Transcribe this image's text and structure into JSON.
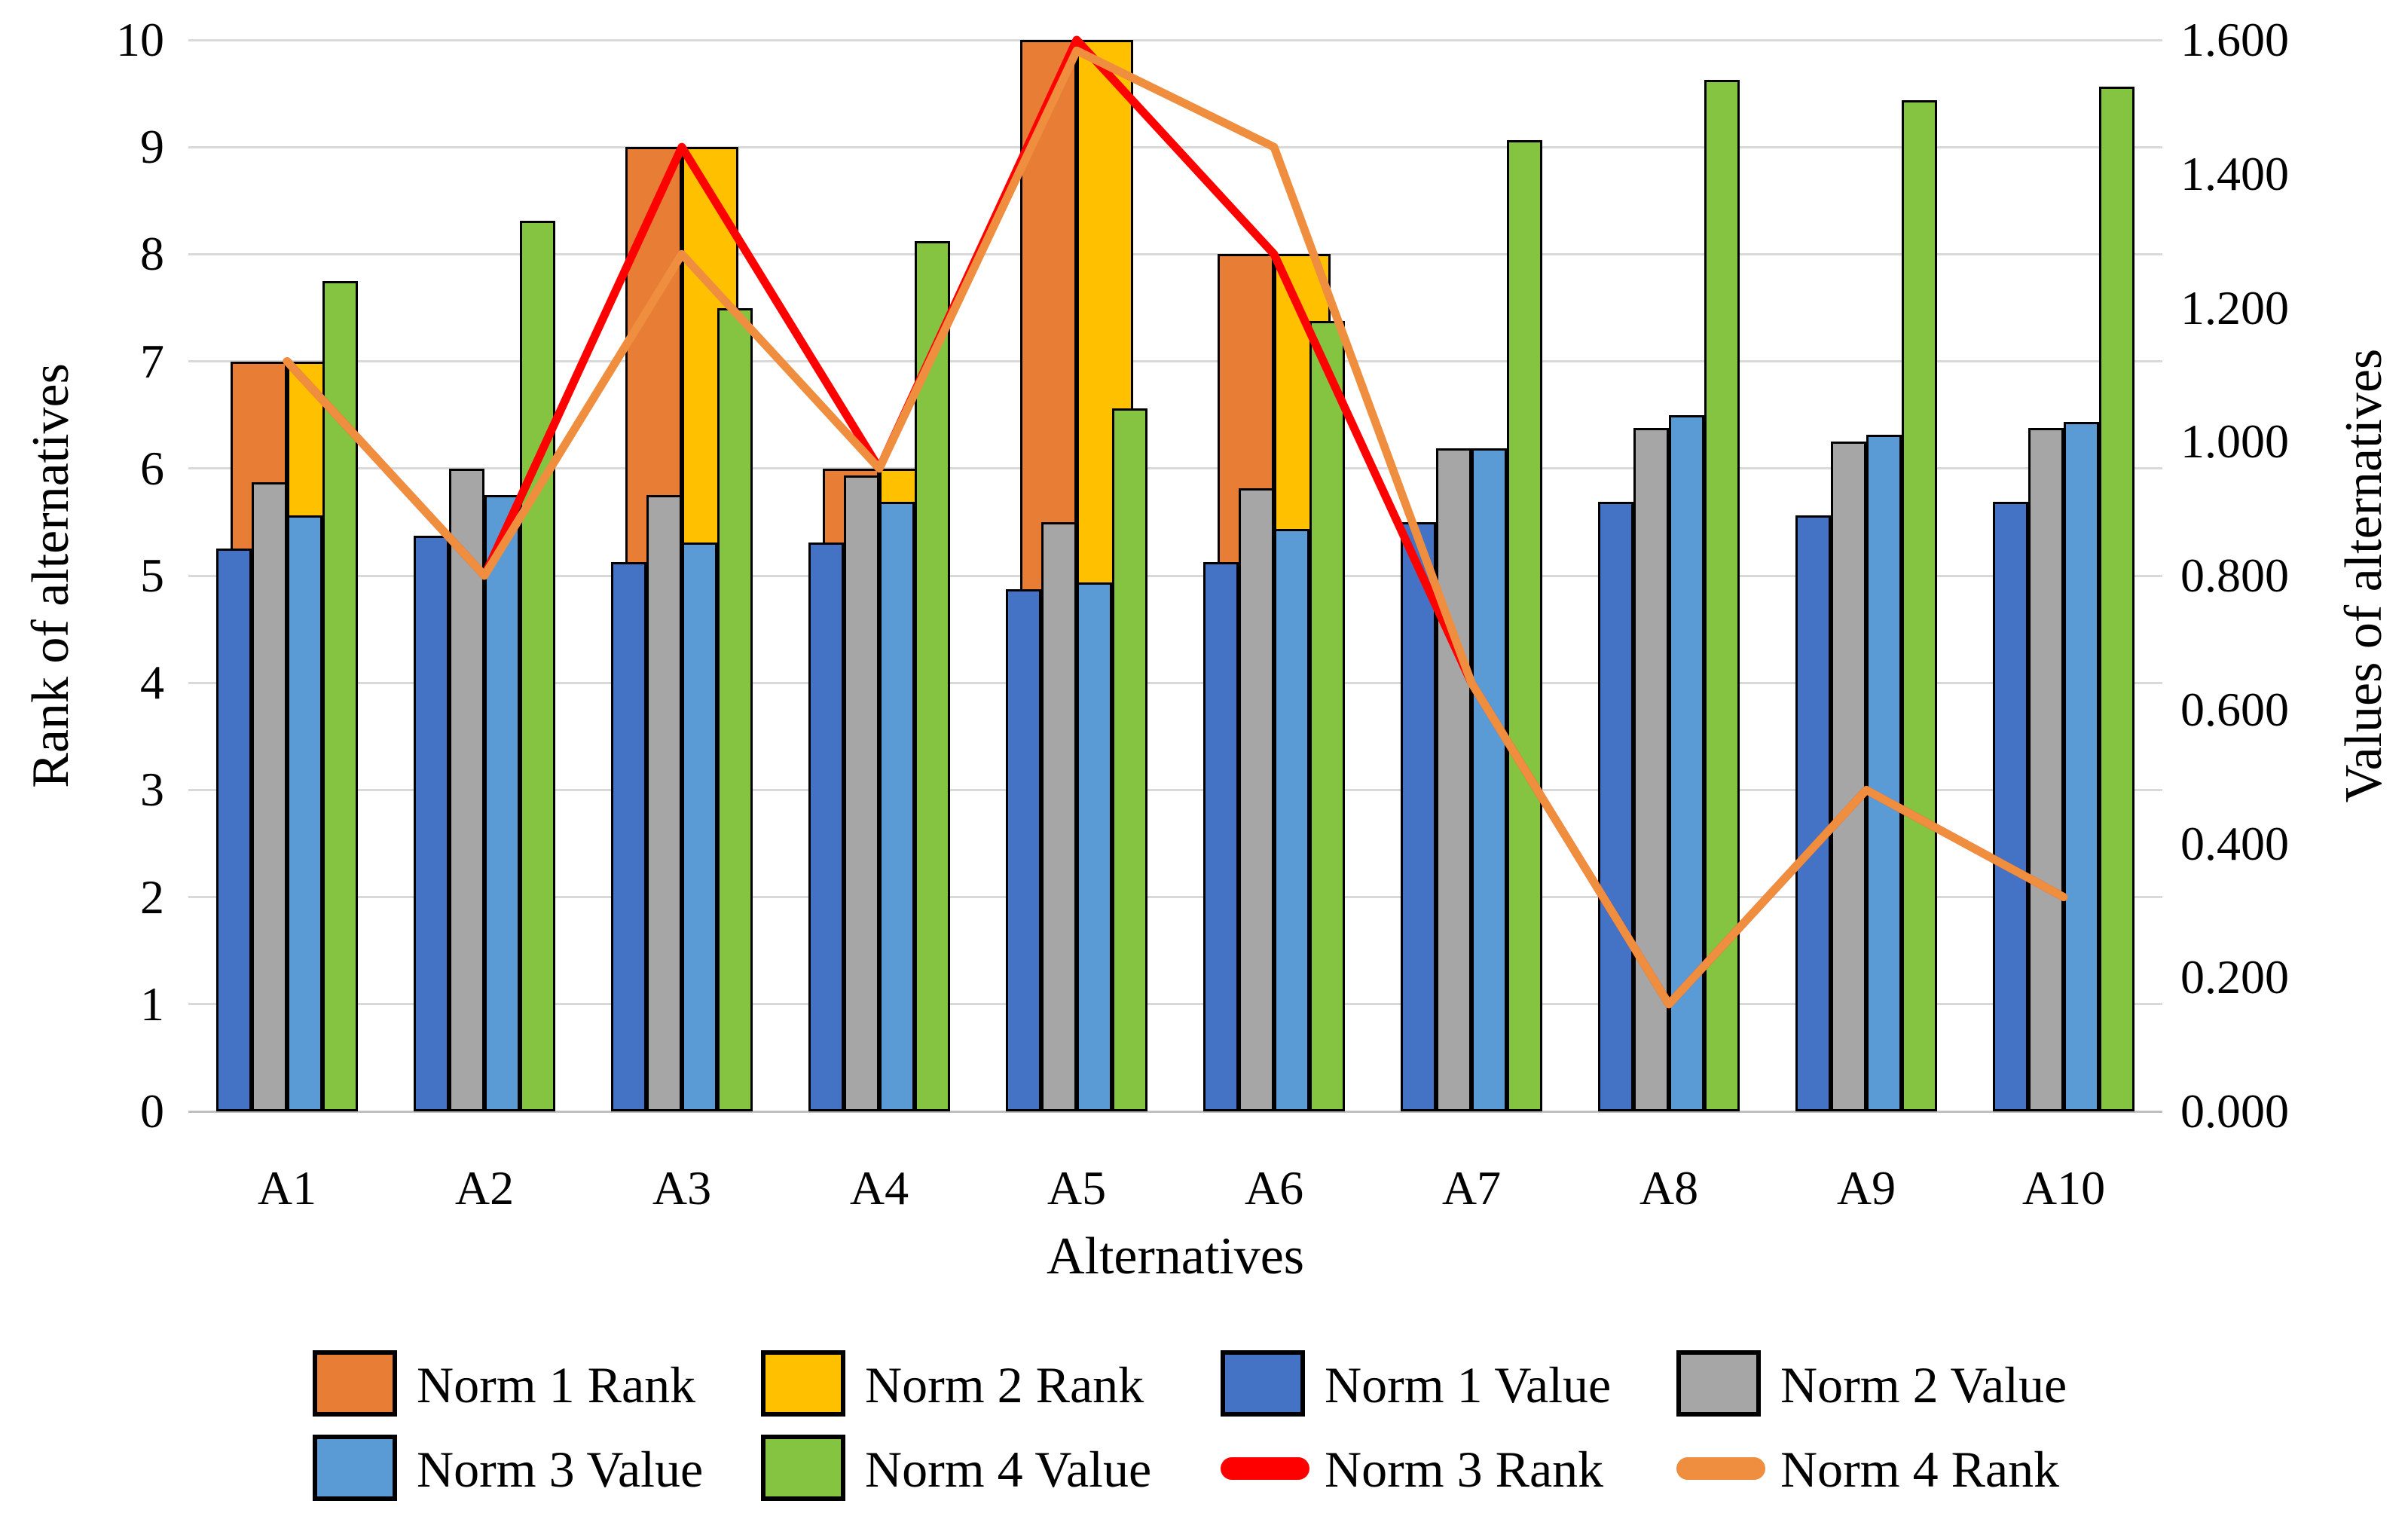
{
  "chart_data": {
    "type": "bar",
    "subtype": "combo-bar-line-dual-axis",
    "categories": [
      "A1",
      "A2",
      "A3",
      "A4",
      "A5",
      "A6",
      "A7",
      "A8",
      "A9",
      "A10"
    ],
    "series": [
      {
        "name": "Norm 1 Rank",
        "type": "bar-wide",
        "axis": "left",
        "color": "#E87E35",
        "values": [
          7,
          5,
          9,
          6,
          10,
          8,
          4,
          1,
          3,
          2
        ]
      },
      {
        "name": "Norm 2 Rank",
        "type": "bar-wide",
        "axis": "left",
        "color": "#FFC000",
        "values": [
          7,
          5,
          9,
          6,
          10,
          8,
          4,
          1,
          3,
          2
        ]
      },
      {
        "name": "Norm 1 Value",
        "type": "bar",
        "axis": "right",
        "color": "#4472C4",
        "values": [
          0.84,
          0.86,
          0.82,
          0.85,
          0.78,
          0.82,
          0.88,
          0.91,
          0.89,
          0.91
        ]
      },
      {
        "name": "Norm 2 Value",
        "type": "bar",
        "axis": "right",
        "color": "#A6A6A6",
        "values": [
          0.94,
          0.96,
          0.92,
          0.95,
          0.88,
          0.93,
          0.99,
          1.02,
          1.0,
          1.02
        ]
      },
      {
        "name": "Norm 3 Value",
        "type": "bar",
        "axis": "right",
        "color": "#5B9BD5",
        "values": [
          0.89,
          0.92,
          0.85,
          0.91,
          0.79,
          0.87,
          0.99,
          1.04,
          1.01,
          1.03
        ]
      },
      {
        "name": "Norm 4 Value",
        "type": "bar",
        "axis": "right",
        "color": "#84C441",
        "values": [
          1.24,
          1.33,
          1.2,
          1.3,
          1.05,
          1.18,
          1.45,
          1.54,
          1.51,
          1.53
        ]
      },
      {
        "name": "Norm 3 Rank",
        "type": "line",
        "axis": "left",
        "color": "#FF0000",
        "values": [
          7,
          5,
          9,
          6,
          10,
          8,
          4,
          1,
          3,
          2
        ]
      },
      {
        "name": "Norm 4 Rank",
        "type": "line",
        "axis": "left",
        "color": "#EF8E3F",
        "values": [
          7,
          5,
          8,
          6,
          9.9,
          9,
          4,
          1,
          3,
          2
        ]
      }
    ],
    "left_axis": {
      "title": "Rank of alternatives",
      "min": 0,
      "max": 10,
      "step": 1,
      "ticks": [
        "0",
        "1",
        "2",
        "3",
        "4",
        "5",
        "6",
        "7",
        "8",
        "9",
        "10"
      ]
    },
    "right_axis": {
      "title": "Values of alternatives",
      "min": 0,
      "max": 1.6,
      "step": 0.2,
      "ticks": [
        "0.000",
        "0.200",
        "0.400",
        "0.600",
        "0.800",
        "1.000",
        "1.200",
        "1.400",
        "1.600"
      ]
    },
    "xlabel": "Alternatives",
    "grid": "horizontal",
    "legend_position": "bottom",
    "legend_rows": [
      [
        {
          "label": "Norm 1 Rank",
          "swatch": "box",
          "color": "#E87E35"
        },
        {
          "label": "Norm 2 Rank",
          "swatch": "box",
          "color": "#FFC000"
        },
        {
          "label": "Norm 1 Value",
          "swatch": "box",
          "color": "#4472C4"
        },
        {
          "label": "Norm 2 Value",
          "swatch": "box",
          "color": "#A6A6A6"
        }
      ],
      [
        {
          "label": "Norm 3 Value",
          "swatch": "box",
          "color": "#5B9BD5"
        },
        {
          "label": "Norm 4 Value",
          "swatch": "box",
          "color": "#84C441"
        },
        {
          "label": "Norm 3 Rank",
          "swatch": "line",
          "color": "#FF0000"
        },
        {
          "label": "Norm 4 Rank",
          "swatch": "line",
          "color": "#EF8E3F"
        }
      ]
    ]
  }
}
